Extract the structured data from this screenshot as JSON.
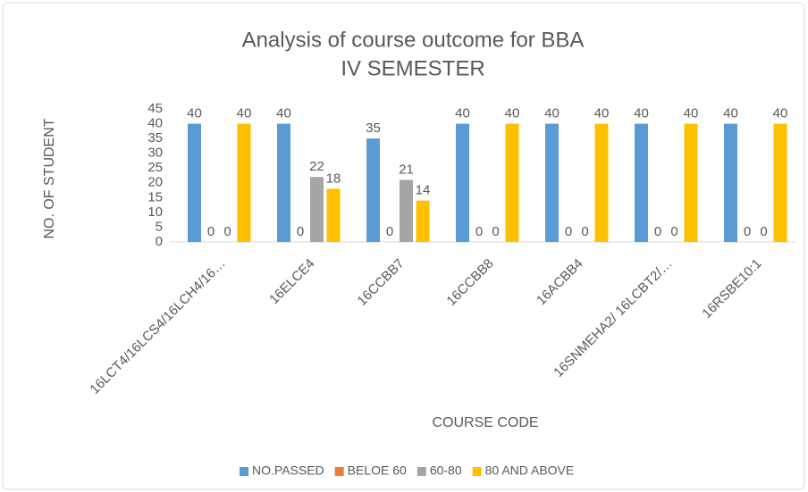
{
  "chart_data": {
    "type": "bar",
    "title": [
      "Analysis of course outcome for BBA",
      "IV SEMESTER"
    ],
    "x_label": "COURSE CODE",
    "y_label": "NO. OF STUDENT",
    "categories": [
      "16LCT4/16LCS4/16LCH4/16…",
      "16ELCE4",
      "16CCBB7",
      "16CCBB8",
      "16ACBB4",
      "16SNMEHA2/ 16LCBT2/…",
      "16RSBE10:1"
    ],
    "series": [
      {
        "name": "NO.PASSED",
        "color": "#5b9bd5",
        "values": [
          40,
          40,
          35,
          40,
          40,
          40,
          40
        ]
      },
      {
        "name": "BELOE 60",
        "color": "#ed7d31",
        "values": [
          0,
          0,
          0,
          0,
          0,
          0,
          0
        ]
      },
      {
        "name": "60-80",
        "color": "#a5a5a5",
        "values": [
          0,
          22,
          21,
          0,
          0,
          0,
          0
        ]
      },
      {
        "name": "80 AND ABOVE",
        "color": "#ffc000",
        "values": [
          40,
          18,
          14,
          40,
          40,
          40,
          40
        ]
      }
    ],
    "ylim": [
      0,
      45
    ],
    "yticks": [
      0,
      5,
      10,
      15,
      20,
      25,
      30,
      35,
      40,
      45
    ],
    "grid": false,
    "legend": "bottom"
  }
}
